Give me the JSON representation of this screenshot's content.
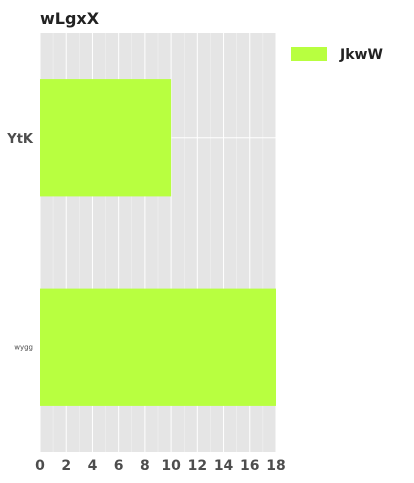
{
  "chart_data": {
    "type": "bar",
    "orientation": "horizontal",
    "title": "wLgxX",
    "categories": [
      "YtK",
      "wygg"
    ],
    "series": [
      {
        "name": "JkwW",
        "values": [
          10,
          18
        ],
        "color": "#b8ff40"
      }
    ],
    "xlim": [
      0,
      18
    ],
    "xticks": [
      0,
      2,
      4,
      6,
      8,
      10,
      12,
      14,
      16,
      18
    ],
    "grid": true,
    "legend_position": "top-right",
    "panel_background": "#e5e5e5",
    "grid_color": "#ffffff"
  }
}
